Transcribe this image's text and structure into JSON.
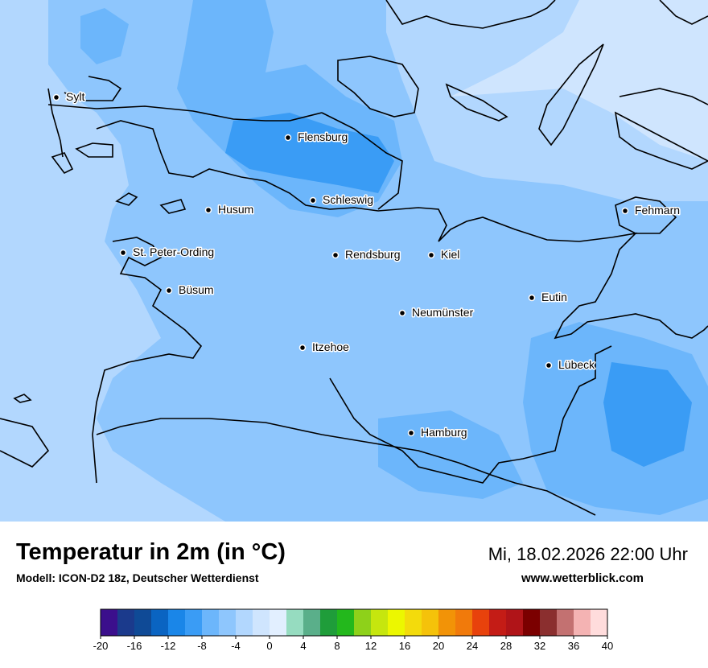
{
  "title": "Temperatur in 2m (in °C)",
  "subtitle": "Modell: ICON-D2 18z, Deutscher Wetterdienst",
  "datetime": "Mi, 18.02.2026 22:00 Uhr",
  "website": "www.wetterblick.com",
  "cities": [
    {
      "name": "Sylt"
    },
    {
      "name": "Flensburg"
    },
    {
      "name": "Husum"
    },
    {
      "name": "Schleswig"
    },
    {
      "name": "Fehmarn"
    },
    {
      "name": "St. Peter-Ording"
    },
    {
      "name": "Rendsburg"
    },
    {
      "name": "Kiel"
    },
    {
      "name": "Büsum"
    },
    {
      "name": "Eutin"
    },
    {
      "name": "Neumünster"
    },
    {
      "name": "Itzehoe"
    },
    {
      "name": "Lübeck"
    },
    {
      "name": "Hamburg"
    }
  ],
  "legend": {
    "min": -20,
    "max": 40,
    "tick_labels": [
      "-20",
      "-16",
      "-12",
      "-8",
      "-4",
      "0",
      "4",
      "8",
      "12",
      "16",
      "20",
      "24",
      "28",
      "32",
      "36",
      "40"
    ],
    "colors": [
      "#3b0f8c",
      "#1b3a8c",
      "#0f4a96",
      "#0a64c2",
      "#1a86e8",
      "#3a9cf5",
      "#6cb6fb",
      "#8ec6fd",
      "#b2d7fe",
      "#cfe5fe",
      "#e2efff",
      "#96dcc0",
      "#5aaf8a",
      "#1f9d3a",
      "#23b81c",
      "#8ed11a",
      "#c6e60e",
      "#ecf700",
      "#f3db0c",
      "#f5c20a",
      "#f29307",
      "#f17a0b",
      "#e8420c",
      "#c41c16",
      "#b01418",
      "#7b0000",
      "#8b2f2f",
      "#c37171",
      "#f4b3b3",
      "#ffdcdc"
    ]
  }
}
